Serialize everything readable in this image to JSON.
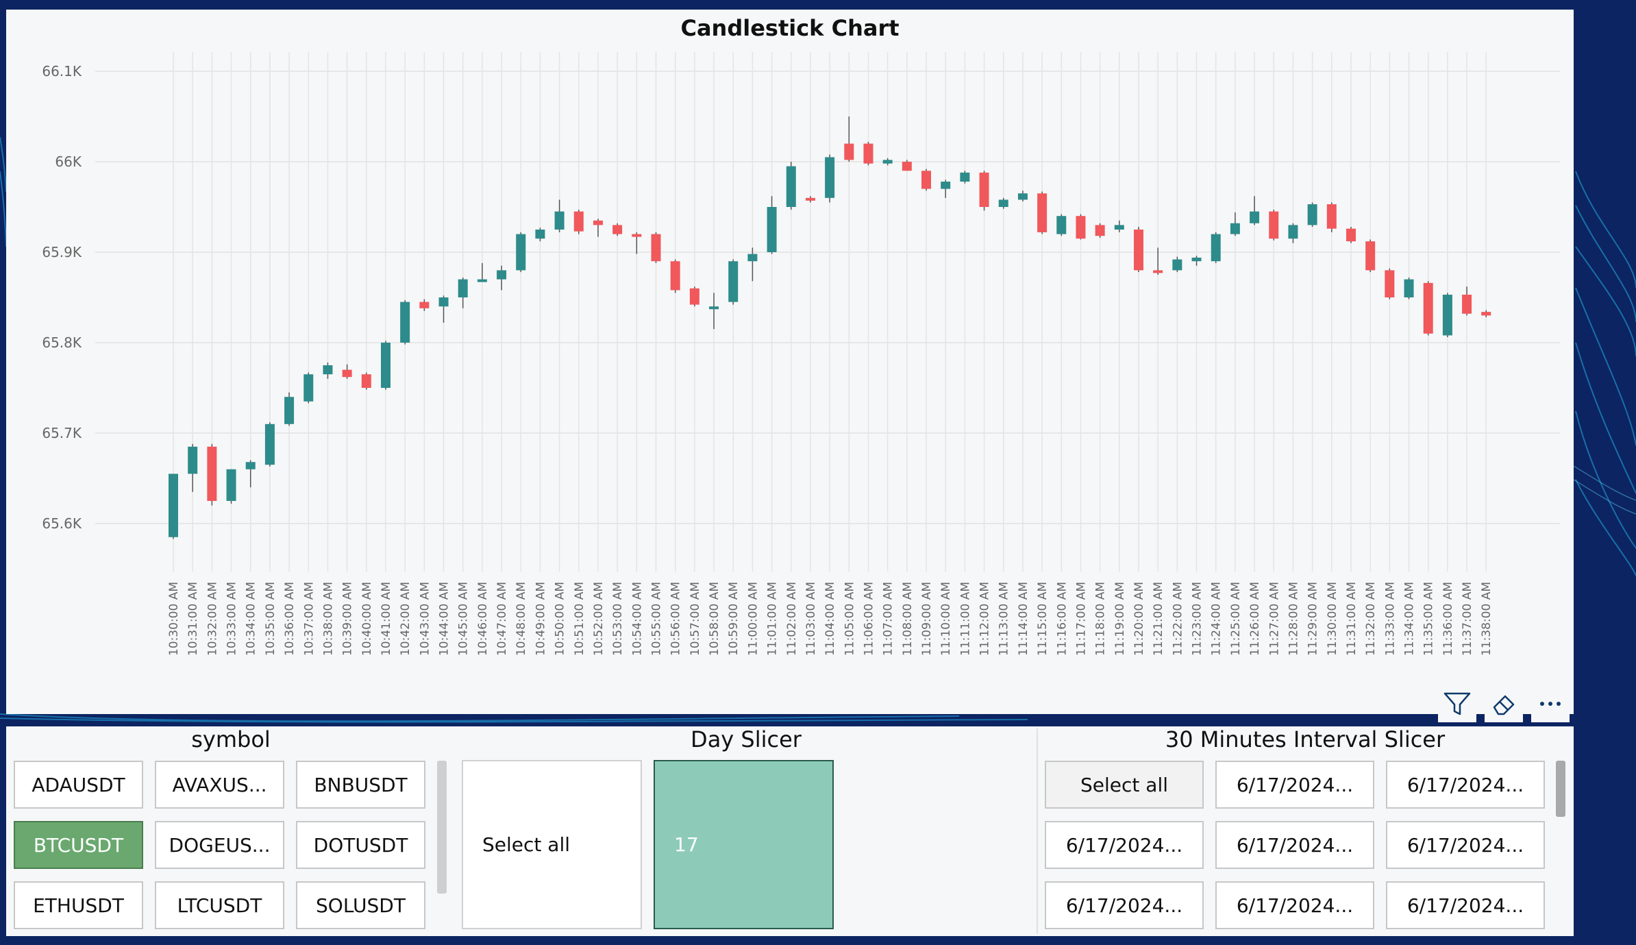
{
  "chart_data": {
    "type": "candlestick",
    "title": "Candlestick Chart",
    "ylim": [
      65550,
      66130
    ],
    "y_ticks": [
      65600,
      65700,
      65800,
      65900,
      66000,
      66100
    ],
    "y_tick_labels": [
      "65.6K",
      "65.7K",
      "65.8K",
      "65.9K",
      "66K",
      "66.1K"
    ],
    "x": [
      "10:30:00 AM",
      "10:31:00 AM",
      "10:32:00 AM",
      "10:33:00 AM",
      "10:34:00 AM",
      "10:35:00 AM",
      "10:36:00 AM",
      "10:37:00 AM",
      "10:38:00 AM",
      "10:39:00 AM",
      "10:40:00 AM",
      "10:41:00 AM",
      "10:42:00 AM",
      "10:43:00 AM",
      "10:44:00 AM",
      "10:45:00 AM",
      "10:46:00 AM",
      "10:47:00 AM",
      "10:48:00 AM",
      "10:49:00 AM",
      "10:50:00 AM",
      "10:51:00 AM",
      "10:52:00 AM",
      "10:53:00 AM",
      "10:54:00 AM",
      "10:55:00 AM",
      "10:56:00 AM",
      "10:57:00 AM",
      "10:58:00 AM",
      "10:59:00 AM",
      "11:00:00 AM",
      "11:01:00 AM",
      "11:02:00 AM",
      "11:03:00 AM",
      "11:04:00 AM",
      "11:05:00 AM",
      "11:06:00 AM",
      "11:07:00 AM",
      "11:08:00 AM",
      "11:09:00 AM",
      "11:10:00 AM",
      "11:11:00 AM",
      "11:12:00 AM",
      "11:13:00 AM",
      "11:14:00 AM",
      "11:15:00 AM",
      "11:16:00 AM",
      "11:17:00 AM",
      "11:18:00 AM",
      "11:19:00 AM",
      "11:20:00 AM",
      "11:21:00 AM",
      "11:22:00 AM",
      "11:23:00 AM",
      "11:24:00 AM",
      "11:25:00 AM",
      "11:26:00 AM",
      "11:27:00 AM",
      "11:28:00 AM",
      "11:29:00 AM",
      "11:30:00 AM",
      "11:31:00 AM",
      "11:32:00 AM",
      "11:33:00 AM",
      "11:34:00 AM",
      "11:35:00 AM",
      "11:36:00 AM",
      "11:37:00 AM",
      "11:38:00 AM"
    ],
    "open": [
      65585,
      65655,
      65685,
      65625,
      65660,
      65665,
      65710,
      65735,
      65765,
      65770,
      65765,
      65750,
      65800,
      65845,
      65840,
      65850,
      65870,
      65870,
      65880,
      65915,
      65925,
      65945,
      65935,
      65930,
      65920,
      65920,
      65890,
      65860,
      65840,
      65845,
      65890,
      65900,
      65950,
      65960,
      65960,
      66020,
      66020,
      65998,
      66000,
      65990,
      65970,
      65978,
      65988,
      65950,
      65958,
      65965,
      65920,
      65940,
      65930,
      65925,
      65925,
      65880,
      65880,
      65890,
      65890,
      65920,
      65932,
      65945,
      65915,
      65930,
      65953,
      65926,
      65912,
      65880,
      65850,
      65866,
      65808,
      65853,
      65834
    ],
    "close": [
      65655,
      65685,
      65625,
      65660,
      65668,
      65710,
      65740,
      65765,
      65775,
      65762,
      65750,
      65800,
      65845,
      65838,
      65850,
      65870,
      65870,
      65880,
      65920,
      65925,
      65945,
      65923,
      65930,
      65920,
      65918,
      65890,
      65858,
      65842,
      65840,
      65890,
      65898,
      65950,
      65995,
      65958,
      66005,
      66002,
      65998,
      66002,
      65990,
      65970,
      65978,
      65988,
      65950,
      65958,
      65965,
      65922,
      65940,
      65915,
      65918,
      65930,
      65880,
      65878,
      65892,
      65894,
      65920,
      65932,
      65945,
      65915,
      65930,
      65953,
      65926,
      65912,
      65880,
      65850,
      65870,
      65810,
      65853,
      65832,
      65830
    ],
    "high": [
      65655,
      65688,
      65688,
      65660,
      65670,
      65712,
      65745,
      65767,
      65778,
      65776,
      65767,
      65802,
      65847,
      65848,
      65852,
      65872,
      65888,
      65885,
      65922,
      65927,
      65958,
      65947,
      65937,
      65932,
      65922,
      65922,
      65892,
      65862,
      65855,
      65892,
      65905,
      65962,
      66000,
      65962,
      66008,
      66050,
      66022,
      66004,
      66002,
      65992,
      65980,
      65990,
      65990,
      65960,
      65968,
      65967,
      65942,
      65942,
      65932,
      65935,
      65928,
      65905,
      65895,
      65896,
      65922,
      65944,
      65962,
      65947,
      65932,
      65955,
      65955,
      65928,
      65914,
      65882,
      65872,
      65868,
      65855,
      65862,
      65836
    ],
    "low": [
      65583,
      65635,
      65620,
      65622,
      65640,
      65663,
      65708,
      65733,
      65760,
      65760,
      65748,
      65748,
      65798,
      65835,
      65822,
      65838,
      65868,
      65858,
      65878,
      65912,
      65922,
      65920,
      65917,
      65918,
      65898,
      65888,
      65855,
      65840,
      65815,
      65842,
      65868,
      65898,
      65947,
      65955,
      65955,
      66000,
      65996,
      65996,
      65990,
      65968,
      65960,
      65976,
      65946,
      65948,
      65956,
      65920,
      65918,
      65914,
      65916,
      65922,
      65878,
      65875,
      65878,
      65885,
      65888,
      65918,
      65930,
      65913,
      65910,
      65928,
      65922,
      65910,
      65878,
      65848,
      65848,
      65808,
      65806,
      65830,
      65828
    ],
    "up_color": "#2e8b8b",
    "down_color": "#f0585c",
    "grid": true
  },
  "toolbar": {
    "icons": [
      "filter-icon",
      "eraser-icon",
      "more-options-icon"
    ]
  },
  "symbol_slicer": {
    "title": "symbol",
    "options": [
      "ADAUSDT",
      "AVAXUS...",
      "BNBUSDT",
      "BTCUSDT",
      "DOGEUS...",
      "DOTUSDT",
      "ETHUSDT",
      "LTCUSDT",
      "SOLUSDT"
    ],
    "selected": "BTCUSDT",
    "selected_color": "#6aa86f"
  },
  "day_slicer": {
    "title": "Day Slicer",
    "select_all": "Select all",
    "value": "17",
    "selected_color": "#8dcbb8"
  },
  "interval_slicer": {
    "title": "30 Minutes Interval Slicer",
    "options": [
      "Select all",
      "6/17/2024...",
      "6/17/2024...",
      "6/17/2024...",
      "6/17/2024...",
      "6/17/2024...",
      "6/17/2024...",
      "6/17/2024...",
      "6/17/2024..."
    ]
  }
}
